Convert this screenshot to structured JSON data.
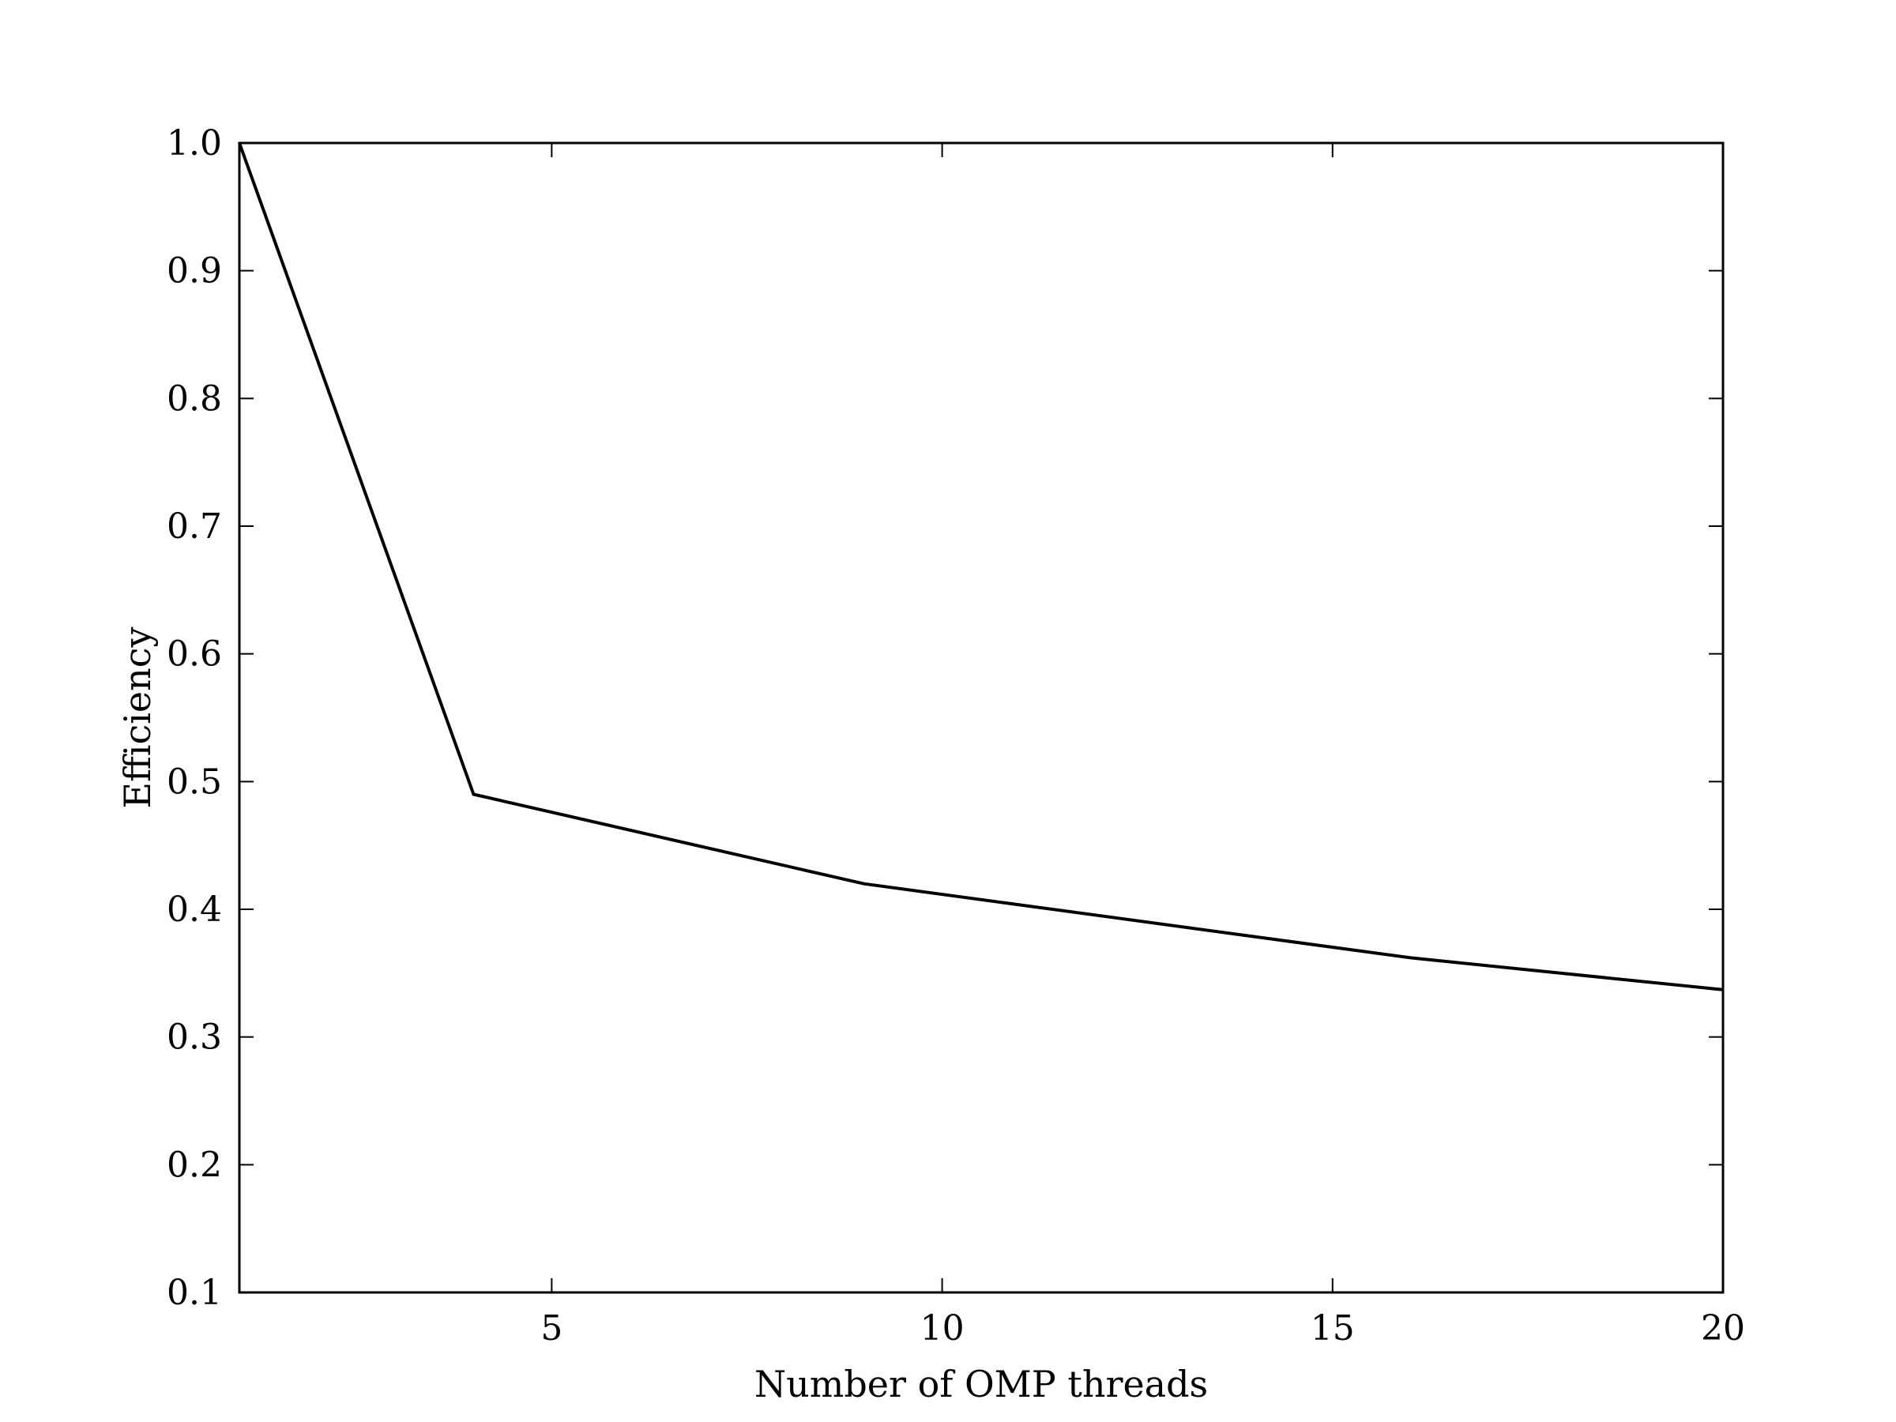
{
  "chart_data": {
    "type": "line",
    "title": "",
    "xlabel": "Number of OMP threads",
    "ylabel": "Efficiency",
    "xlim": [
      1,
      20
    ],
    "ylim": [
      0.1,
      1.0
    ],
    "grid": false,
    "x_ticks": [
      5,
      10,
      15,
      20
    ],
    "x_tick_labels": [
      "5",
      "10",
      "15",
      "20"
    ],
    "y_ticks": [
      0.1,
      0.2,
      0.3,
      0.4,
      0.5,
      0.6,
      0.7,
      0.8,
      0.9,
      1.0
    ],
    "y_tick_labels": [
      "0.1",
      "0.2",
      "0.3",
      "0.4",
      "0.5",
      "0.6",
      "0.7",
      "0.8",
      "0.9",
      "1.0"
    ],
    "series": [
      {
        "x": [
          1,
          4,
          9,
          16,
          20
        ],
        "y": [
          1.0,
          0.49,
          0.42,
          0.362,
          0.337
        ],
        "color": "#000000"
      }
    ]
  }
}
